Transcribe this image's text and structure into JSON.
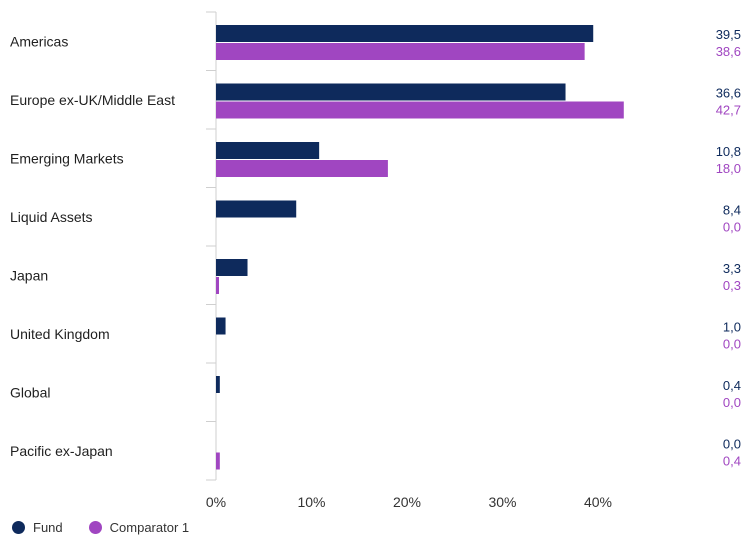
{
  "chart_data": {
    "type": "bar",
    "orientation": "horizontal",
    "categories": [
      "Americas",
      "Europe ex-UK/Middle East",
      "Emerging Markets",
      "Liquid Assets",
      "Japan",
      "United Kingdom",
      "Global",
      "Pacific ex-Japan"
    ],
    "series": [
      {
        "name": "Fund",
        "color": "#0e2a5c",
        "values": [
          39.5,
          36.6,
          10.8,
          8.4,
          3.3,
          1.0,
          0.4,
          0.0
        ],
        "labels": [
          "39,5",
          "36,6",
          "10,8",
          "8,4",
          "3,3",
          "1,0",
          "0,4",
          "0,0"
        ]
      },
      {
        "name": "Comparator 1",
        "color": "#a046c1",
        "values": [
          38.6,
          42.7,
          18.0,
          0.0,
          0.3,
          0.0,
          0.0,
          0.4
        ],
        "labels": [
          "38,6",
          "42,7",
          "18,0",
          "0,0",
          "0,3",
          "0,0",
          "0,0",
          "0,4"
        ]
      }
    ],
    "x_ticks": [
      "0%",
      "10%",
      "20%",
      "30%",
      "40%"
    ],
    "xlim": [
      0,
      50
    ],
    "title": "",
    "xlabel": "",
    "ylabel": "",
    "legend_position": "bottom-left",
    "grid": false
  }
}
